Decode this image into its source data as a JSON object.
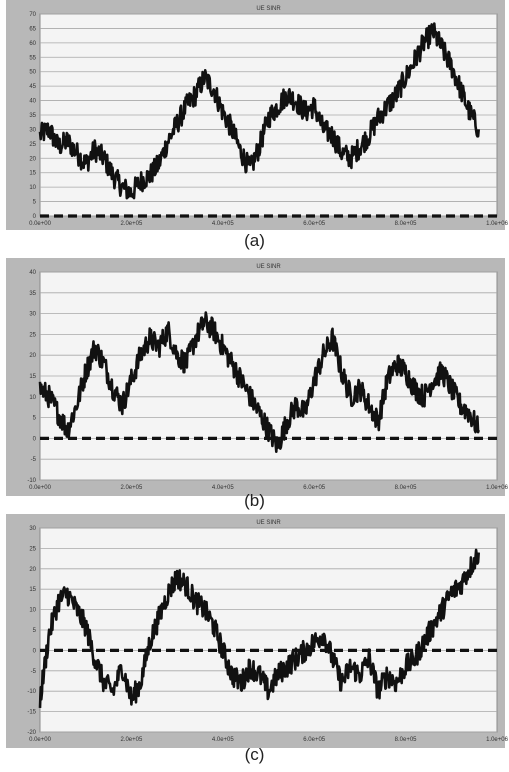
{
  "chart_data": [
    {
      "type": "line",
      "panel": "(a)",
      "title": "UE SINR",
      "ylim": [
        0,
        70
      ],
      "yticks": [
        0,
        5,
        10,
        15,
        20,
        25,
        30,
        35,
        40,
        45,
        50,
        55,
        60,
        65,
        70
      ],
      "xlim": [
        0,
        1.0
      ],
      "xtick_labels": [
        "0.0e+00",
        "2.0e+05",
        "4.0e+05",
        "6.0e+05",
        "8.0e+05",
        "1.0e+06"
      ],
      "threshold": 0,
      "grid": true,
      "series": [
        {
          "x": [
            0.0,
            0.02,
            0.04,
            0.06,
            0.08,
            0.1,
            0.12,
            0.14,
            0.16,
            0.18,
            0.2,
            0.22,
            0.24,
            0.26,
            0.28,
            0.3,
            0.32,
            0.34,
            0.36,
            0.38,
            0.4,
            0.42,
            0.44,
            0.46,
            0.48,
            0.5,
            0.52,
            0.54,
            0.56,
            0.58,
            0.6,
            0.62,
            0.64,
            0.66,
            0.68,
            0.7,
            0.72,
            0.74,
            0.76,
            0.78,
            0.8,
            0.82,
            0.84,
            0.86,
            0.88,
            0.9,
            0.92,
            0.94,
            0.96
          ],
          "y": [
            28,
            30,
            24,
            26,
            22,
            18,
            23,
            20,
            14,
            10,
            8,
            12,
            14,
            18,
            26,
            32,
            38,
            42,
            48,
            44,
            36,
            30,
            22,
            16,
            24,
            34,
            38,
            42,
            40,
            36,
            38,
            30,
            28,
            22,
            20,
            24,
            28,
            34,
            38,
            42,
            48,
            54,
            60,
            64,
            58,
            52,
            44,
            36,
            30
          ]
        }
      ]
    },
    {
      "type": "line",
      "panel": "(b)",
      "title": "UE SINR",
      "ylim": [
        -10,
        40
      ],
      "yticks": [
        -10,
        -5,
        0,
        5,
        10,
        15,
        20,
        25,
        30,
        35,
        40
      ],
      "xlim": [
        0,
        1.0
      ],
      "xtick_labels": [
        "0.0e+00",
        "2.0e+05",
        "4.0e+05",
        "6.0e+05",
        "8.0e+05",
        "1.0e+06"
      ],
      "threshold": 0,
      "grid": true,
      "series": [
        {
          "x": [
            0.0,
            0.02,
            0.04,
            0.06,
            0.08,
            0.1,
            0.12,
            0.14,
            0.16,
            0.18,
            0.2,
            0.22,
            0.24,
            0.26,
            0.28,
            0.3,
            0.32,
            0.34,
            0.36,
            0.38,
            0.4,
            0.42,
            0.44,
            0.46,
            0.48,
            0.5,
            0.52,
            0.54,
            0.56,
            0.58,
            0.6,
            0.62,
            0.64,
            0.66,
            0.68,
            0.7,
            0.72,
            0.74,
            0.76,
            0.78,
            0.8,
            0.82,
            0.84,
            0.86,
            0.88,
            0.9,
            0.92,
            0.94,
            0.96
          ],
          "y": [
            12,
            10,
            6,
            2,
            8,
            16,
            22,
            18,
            12,
            8,
            14,
            20,
            24,
            22,
            26,
            20,
            18,
            24,
            28,
            26,
            22,
            18,
            14,
            10,
            6,
            2,
            -2,
            4,
            8,
            6,
            14,
            20,
            24,
            16,
            10,
            12,
            8,
            4,
            14,
            18,
            16,
            12,
            10,
            14,
            16,
            12,
            8,
            6,
            2
          ]
        }
      ]
    },
    {
      "type": "line",
      "panel": "(c)",
      "title": "UE SINR",
      "ylim": [
        -20,
        30
      ],
      "yticks": [
        -20,
        -15,
        -10,
        -5,
        0,
        5,
        10,
        15,
        20,
        25,
        30
      ],
      "xlim": [
        0,
        1.0
      ],
      "xtick_labels": [
        "0.0e+00",
        "2.0e+05",
        "4.0e+05",
        "6.0e+05",
        "8.0e+05",
        "1.0e+06"
      ],
      "threshold": 0,
      "grid": true,
      "series": [
        {
          "x": [
            0.0,
            0.02,
            0.04,
            0.06,
            0.08,
            0.1,
            0.12,
            0.14,
            0.16,
            0.18,
            0.2,
            0.22,
            0.24,
            0.26,
            0.28,
            0.3,
            0.32,
            0.34,
            0.36,
            0.38,
            0.4,
            0.42,
            0.44,
            0.46,
            0.48,
            0.5,
            0.52,
            0.54,
            0.56,
            0.58,
            0.6,
            0.62,
            0.64,
            0.66,
            0.68,
            0.7,
            0.72,
            0.74,
            0.76,
            0.78,
            0.8,
            0.82,
            0.84,
            0.86,
            0.88,
            0.9,
            0.92,
            0.94,
            0.96
          ],
          "y": [
            -12,
            4,
            12,
            14,
            10,
            6,
            -2,
            -8,
            -10,
            -4,
            -12,
            -8,
            2,
            8,
            14,
            18,
            16,
            12,
            10,
            6,
            0,
            -6,
            -8,
            -4,
            -6,
            -10,
            -6,
            -4,
            -2,
            0,
            2,
            4,
            -2,
            -8,
            -4,
            -6,
            -2,
            -10,
            -6,
            -8,
            -4,
            -2,
            2,
            6,
            10,
            14,
            16,
            20,
            24
          ]
        }
      ]
    }
  ],
  "captions": [
    "(a)",
    "(b)",
    "(c)"
  ]
}
